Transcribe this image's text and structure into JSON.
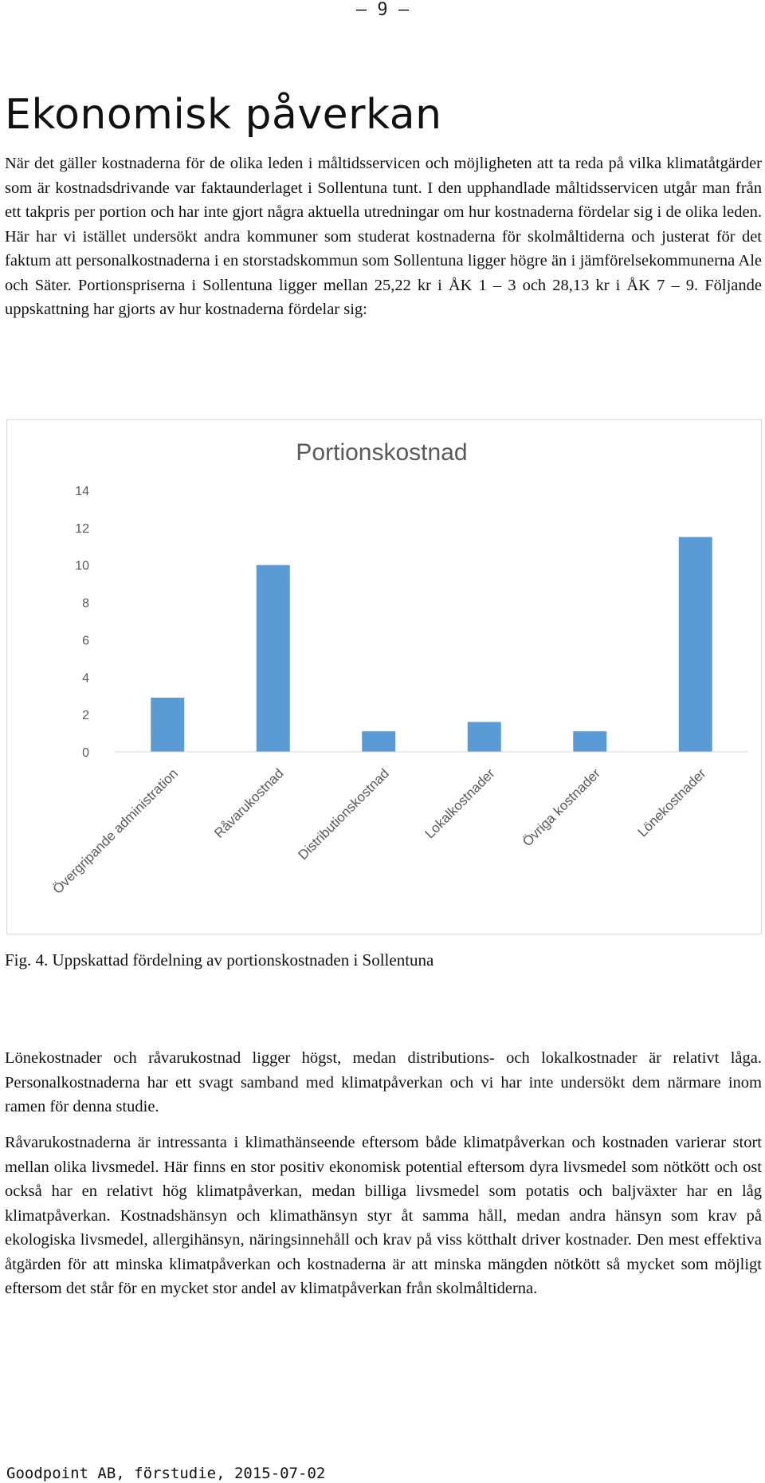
{
  "page_number": "– 9 –",
  "heading": "Ekonomisk påverkan",
  "intro_paragraph": "När det gäller kostnaderna för de olika leden i måltidsservicen och möjligheten att ta reda på vilka klimatåtgärder som är kostnadsdrivande var faktaunderlaget i Sollentuna tunt. I den upphandlade måltidsservicen utgår man från ett takpris per portion och har inte gjort några aktuella utredningar om hur kostnaderna fördelar sig i de olika leden. Här har vi istället undersökt andra kommuner som studerat kostnaderna för skolmåltiderna och justerat för det faktum att personalkostnaderna i en storstadskommun som Sollentuna ligger högre än i jämförelsekommunerna Ale och Säter. Portionspriserna i Sollentuna ligger mellan 25,22 kr i ÅK 1 – 3 och 28,13 kr i ÅK 7 – 9. Följande uppskattning har gjorts av hur kostnaderna fördelar sig:",
  "chart_data": {
    "type": "bar",
    "title": "Portionskostnad",
    "categories": [
      "Övergripande administration",
      "Råvarukostnad",
      "Distributionskostnad",
      "Lokalkostnader",
      "Övriga kostnader",
      "Lönekostnader"
    ],
    "values": [
      2.9,
      10.0,
      1.1,
      1.6,
      1.1,
      11.5
    ],
    "ylim": [
      0,
      14
    ],
    "yticks": [
      "0",
      "2",
      "4",
      "6",
      "8",
      "10",
      "12",
      "14"
    ],
    "xlabel": "",
    "ylabel": "",
    "grid": false,
    "legend": "none",
    "bar_color": "#5b9bd5"
  },
  "caption": "Fig. 4. Uppskattad fördelning av portionskostnaden i Sollentuna",
  "paragraph_2": "Lönekostnader och råvarukostnad ligger högst, medan distributions- och lokalkostnader är relativt låga. Personalkostnaderna har ett svagt samband med klimatpåverkan och vi har inte undersökt dem närmare inom ramen för denna studie.",
  "paragraph_3": "Råvarukostnaderna är intressanta i klimathänseende eftersom både klimatpåverkan och kostnaden varierar stort mellan olika livsmedel. Här finns en stor positiv ekonomisk potential eftersom dyra livsmedel som nötkött och ost också har en relativt hög klimatpåverkan, medan billiga livsmedel som potatis och baljväxter har en låg klimatpåverkan. Kostnadshänsyn och klimathänsyn styr åt samma håll, medan andra hänsyn som krav på ekologiska livsmedel, allergihänsyn, näringsinnehåll och krav på viss kötthalt driver kostnader. Den mest effektiva åtgärden för att minska klimatpåverkan och kostnaderna är att minska mängden nötkött så mycket som möjligt eftersom det står för en mycket stor andel av klimatpåverkan från skolmåltiderna.",
  "footer": "Goodpoint AB, förstudie, 2015-07-02"
}
